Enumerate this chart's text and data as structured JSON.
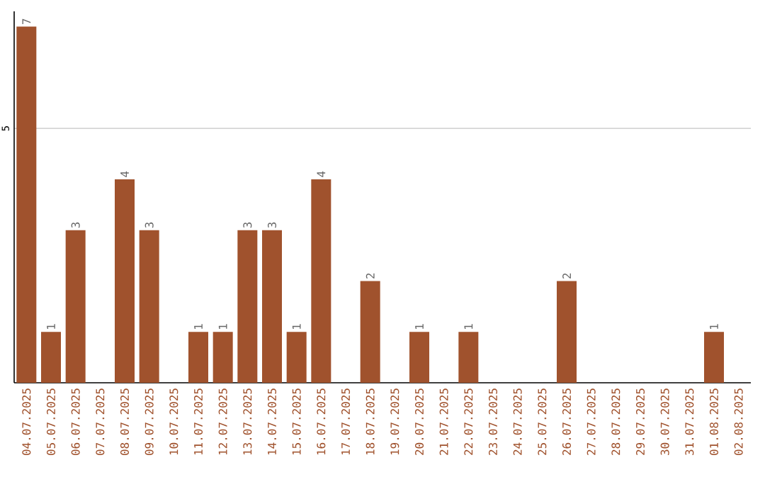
{
  "chart_data": {
    "type": "bar",
    "categories": [
      "04.07.2025",
      "05.07.2025",
      "06.07.2025",
      "07.07.2025",
      "08.07.2025",
      "09.07.2025",
      "10.07.2025",
      "11.07.2025",
      "12.07.2025",
      "13.07.2025",
      "14.07.2025",
      "15.07.2025",
      "16.07.2025",
      "17.07.2025",
      "18.07.2025",
      "19.07.2025",
      "20.07.2025",
      "21.07.2025",
      "22.07.2025",
      "23.07.2025",
      "24.07.2025",
      "25.07.2025",
      "26.07.2025",
      "27.07.2025",
      "28.07.2025",
      "29.07.2025",
      "30.07.2025",
      "31.07.2025",
      "01.08.2025",
      "02.08.2025"
    ],
    "values": [
      7,
      1,
      3,
      0,
      4,
      3,
      0,
      1,
      1,
      3,
      3,
      1,
      4,
      0,
      2,
      0,
      1,
      0,
      1,
      0,
      0,
      0,
      2,
      0,
      0,
      0,
      0,
      0,
      1,
      0
    ],
    "value_labels": [
      "7",
      "1",
      "3",
      null,
      "4",
      "3",
      null,
      "1",
      "1",
      "3",
      "3",
      "1",
      "4",
      null,
      "2",
      null,
      "1",
      null,
      "1",
      null,
      null,
      null,
      "2",
      null,
      null,
      null,
      null,
      null,
      "1",
      null
    ],
    "color": "#a0522d",
    "ylim": [
      0,
      7.3
    ],
    "yticks": [
      5
    ],
    "grid": "y"
  }
}
